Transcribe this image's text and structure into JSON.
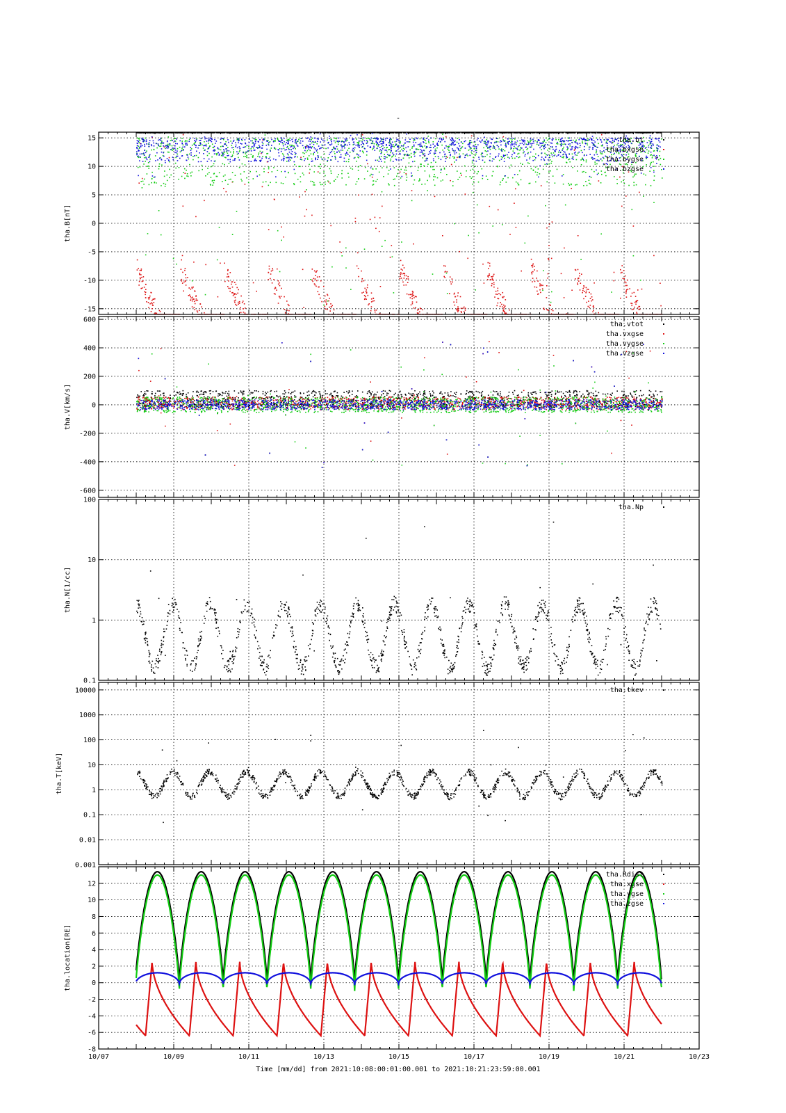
{
  "page": {
    "title_mark": "-"
  },
  "chart_data": [
    {
      "type": "scatter",
      "ylabel": "tha.B[nT]",
      "yscale": "linear",
      "ylim": [
        -16,
        16
      ],
      "yticks": [
        -15,
        -10,
        -5,
        0,
        5,
        10,
        15
      ],
      "ytick_labels": [
        "-15",
        "-10",
        "-5",
        "0",
        "5",
        "10",
        "15"
      ],
      "legend": "top-right",
      "series": [
        {
          "name": "tha.bt",
          "color": "#000000",
          "gen": {
            "kind": "flat",
            "level": 16
          }
        },
        {
          "name": "tha.bxgse",
          "color": "#dd1111",
          "gen": {
            "kind": "sweep",
            "start": -8,
            "end": -16,
            "hi": 16,
            "lo": -16
          }
        },
        {
          "name": "tha.bygse",
          "color": "#11cc11",
          "gen": {
            "kind": "spiky",
            "base": 15,
            "amp": 6,
            "hi": 16,
            "lo": -16
          }
        },
        {
          "name": "tha.bzgse",
          "color": "#1111dd",
          "gen": {
            "kind": "spiky",
            "base": 15,
            "amp": 3,
            "hi": 16,
            "lo": 8
          }
        }
      ]
    },
    {
      "type": "scatter",
      "ylabel": "tha.V[km/s]",
      "yscale": "linear",
      "ylim": [
        -650,
        620
      ],
      "yticks": [
        -600,
        -400,
        -200,
        0,
        200,
        400,
        600
      ],
      "ytick_labels": [
        "-600",
        "-400",
        "-200",
        "0",
        "200",
        "400",
        "600"
      ],
      "legend": "top-right",
      "series": [
        {
          "name": "tha.vtot",
          "color": "#000000",
          "gen": {
            "kind": "noise",
            "base": 40,
            "amp": 60
          }
        },
        {
          "name": "tha.vxgse",
          "color": "#dd1111",
          "gen": {
            "kind": "noise",
            "base": 10,
            "amp": 45
          }
        },
        {
          "name": "tha.vygse",
          "color": "#11cc11",
          "gen": {
            "kind": "noise",
            "base": 0,
            "amp": 55
          }
        },
        {
          "name": "tha.vzgse",
          "color": "#1111dd",
          "gen": {
            "kind": "noise",
            "base": 0,
            "amp": 35
          }
        }
      ]
    },
    {
      "type": "scatter",
      "ylabel": "tha.N[1/cc]",
      "yscale": "log",
      "ylim": [
        0.1,
        100
      ],
      "yticks": [
        0.1,
        1,
        10,
        100
      ],
      "ytick_labels": [
        "0.1",
        "1",
        "10",
        "100"
      ],
      "legend": "top-right",
      "series": [
        {
          "name": "tha.Np",
          "color": "#000000",
          "gen": {
            "kind": "logwave",
            "lo": 0.12,
            "hi": 2.5
          }
        }
      ]
    },
    {
      "type": "scatter",
      "ylabel": "tha.T[keV]",
      "yscale": "log",
      "ylim": [
        0.001,
        20000
      ],
      "yticks": [
        0.001,
        0.01,
        0.1,
        1,
        10,
        100,
        1000,
        10000
      ],
      "ytick_labels": [
        "0.001",
        "0.01",
        "0.1",
        "1",
        "10",
        "100",
        "1000",
        "10000"
      ],
      "legend": "top-right",
      "series": [
        {
          "name": "tha.tkev",
          "color": "#000000",
          "gen": {
            "kind": "logwave",
            "lo": 0.4,
            "hi": 7
          }
        }
      ]
    },
    {
      "type": "line",
      "ylabel": "tha.location[RE]",
      "yscale": "linear",
      "ylim": [
        -8,
        14
      ],
      "yticks": [
        -8,
        -6,
        -4,
        -2,
        0,
        2,
        4,
        6,
        8,
        10,
        12
      ],
      "ytick_labels": [
        "-8",
        "-6",
        "-4",
        "-2",
        "0",
        "2",
        "4",
        "6",
        "8",
        "10",
        "12"
      ],
      "legend": "top-right",
      "orbit_period_days": 1.168,
      "series": [
        {
          "name": "tha.Rdist",
          "color": "#000000",
          "gen": {
            "kind": "orbitR",
            "peak": 13.4,
            "low": 0.0
          }
        },
        {
          "name": "tha.xgse",
          "color": "#dd1111",
          "gen": {
            "kind": "orbitX",
            "peak": 2.6,
            "low": -6.4
          }
        },
        {
          "name": "tha.ygse",
          "color": "#11cc11",
          "gen": {
            "kind": "orbitR",
            "peak": 13.0,
            "low": -1.0
          }
        },
        {
          "name": "tha.zgse",
          "color": "#1111dd",
          "gen": {
            "kind": "orbitZ",
            "peak": 1.2,
            "low": -0.3
          }
        }
      ]
    }
  ],
  "xaxis": {
    "xlim": [
      "10/07",
      "10/23"
    ],
    "data_range": [
      "10/08",
      "10/22"
    ],
    "major_ticks": [
      "10/07",
      "10/09",
      "10/11",
      "10/13",
      "10/15",
      "10/17",
      "10/19",
      "10/21",
      "10/23"
    ],
    "label": "Time [mm/dd]  from 2021:10:08:00:01:00.001  to  2021:10:21:23:59:00.001"
  }
}
